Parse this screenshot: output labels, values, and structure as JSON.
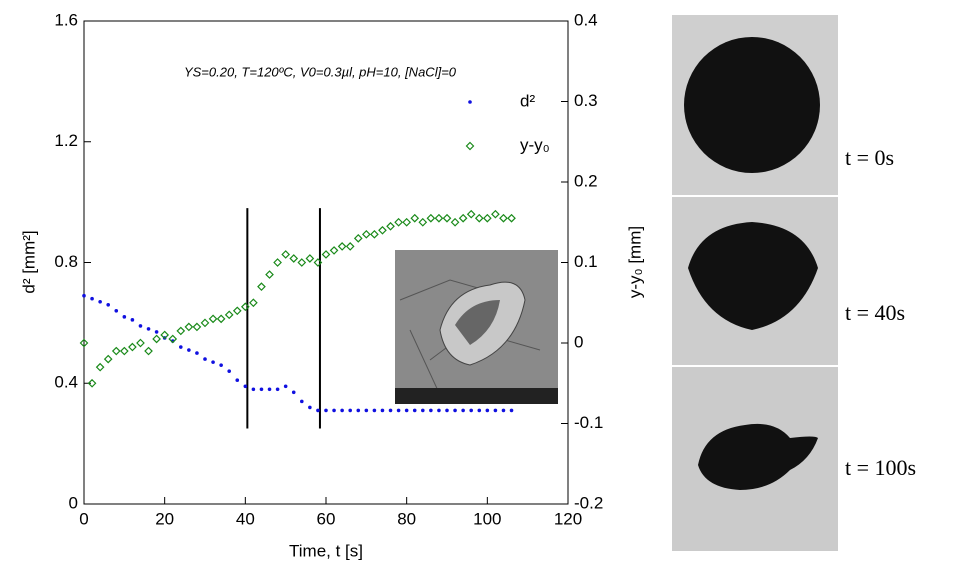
{
  "chart_data": {
    "type": "scatter",
    "annotation": "YS=0.20, T=120ºC, V0=0.3µl, pH=10, [NaCl]=0",
    "xlabel": "Time, t [s]",
    "ylabel": "d² [mm²]",
    "y2label": "y-y₀ [mm]",
    "xlim": [
      0,
      120
    ],
    "xticks": [
      0,
      20,
      40,
      60,
      80,
      100,
      120
    ],
    "ylim": [
      0,
      1.6
    ],
    "yticks": [
      0,
      0.4,
      0.8,
      1.2,
      1.6
    ],
    "y2lim": [
      -0.2,
      0.4
    ],
    "y2ticks": [
      -0.2,
      -0.1,
      0,
      0.1,
      0.2,
      0.3,
      0.4
    ],
    "legend": "upper right",
    "x": [
      0,
      2,
      4,
      6,
      8,
      10,
      12,
      14,
      16,
      18,
      20,
      22,
      24,
      26,
      28,
      30,
      32,
      34,
      36,
      38,
      40,
      42,
      44,
      46,
      48,
      50,
      52,
      54,
      56,
      58,
      60,
      62,
      64,
      66,
      68,
      70,
      72,
      74,
      76,
      78,
      80,
      82,
      84,
      86,
      88,
      90,
      92,
      94,
      96,
      98,
      100,
      102,
      104,
      106
    ],
    "series": [
      {
        "name": "d²",
        "color": "#1010e0",
        "marker": "dot",
        "values": [
          0.69,
          0.68,
          0.67,
          0.66,
          0.64,
          0.62,
          0.61,
          0.59,
          0.58,
          0.57,
          0.55,
          0.54,
          0.52,
          0.51,
          0.5,
          0.48,
          0.47,
          0.46,
          0.44,
          0.41,
          0.39,
          0.38,
          0.38,
          0.38,
          0.38,
          0.39,
          0.37,
          0.34,
          0.32,
          0.31,
          0.31,
          0.31,
          0.31,
          0.31,
          0.31,
          0.31,
          0.31,
          0.31,
          0.31,
          0.31,
          0.31,
          0.31,
          0.31,
          0.31,
          0.31,
          0.31,
          0.31,
          0.31,
          0.31,
          0.31,
          0.31,
          0.31,
          0.31,
          0.31
        ]
      },
      {
        "name": "y-y₀",
        "color": "#1a8a1a",
        "marker": "diamond",
        "axis": "y2",
        "values": [
          0.0,
          -0.05,
          -0.03,
          -0.02,
          -0.01,
          -0.01,
          -0.005,
          0.0,
          -0.01,
          0.005,
          0.01,
          0.005,
          0.015,
          0.02,
          0.02,
          0.025,
          0.03,
          0.03,
          0.035,
          0.04,
          0.045,
          0.05,
          0.07,
          0.085,
          0.1,
          0.11,
          0.105,
          0.1,
          0.105,
          0.1,
          0.11,
          0.115,
          0.12,
          0.12,
          0.13,
          0.135,
          0.135,
          0.14,
          0.145,
          0.15,
          0.15,
          0.155,
          0.15,
          0.155,
          0.155,
          0.155,
          0.15,
          0.155,
          0.16,
          0.155,
          0.155,
          0.16,
          0.155,
          0.155
        ]
      }
    ],
    "vlines": [
      40.5,
      58.5
    ],
    "image_labels": [
      "t = 0s",
      "t = 40s",
      "t = 100s"
    ]
  }
}
